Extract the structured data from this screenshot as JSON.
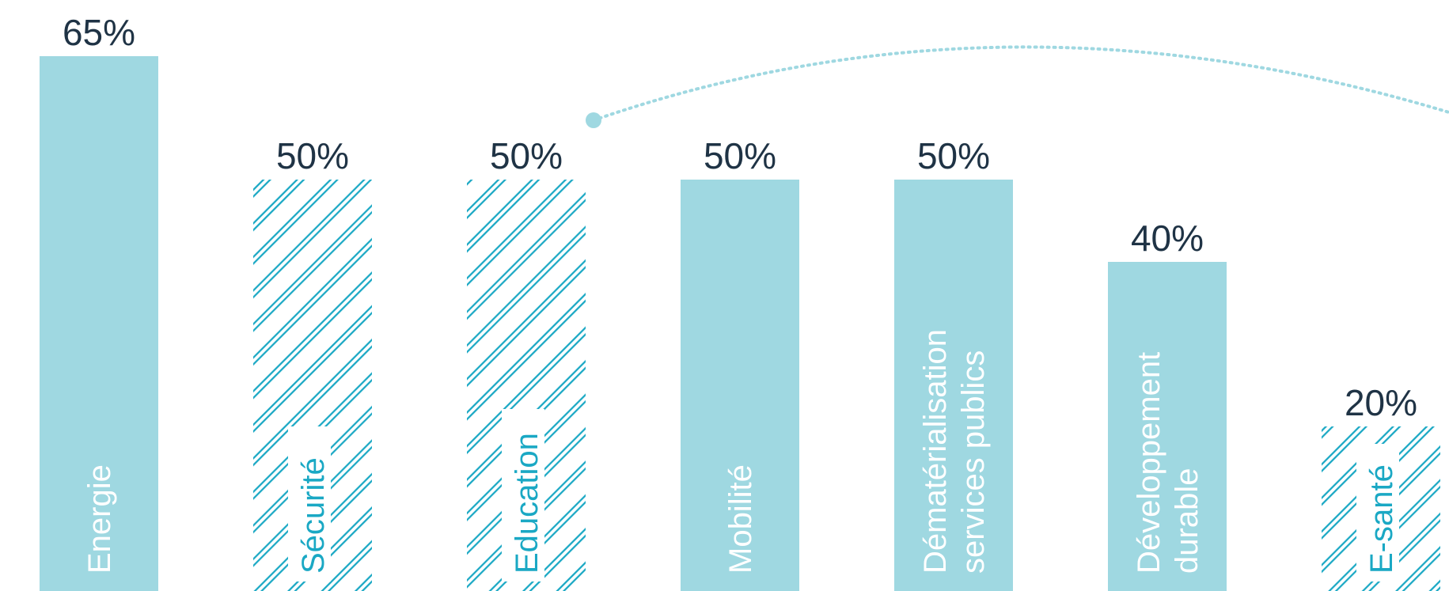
{
  "chart_data": {
    "type": "bar",
    "categories": [
      "Energie",
      "Sécurité",
      "Education",
      "Mobilité",
      "Dématérialisation services publics",
      "Développement durable",
      "E-santé"
    ],
    "category_lines": [
      [
        "Energie"
      ],
      [
        "Sécurité"
      ],
      [
        "Education"
      ],
      [
        "Mobilité"
      ],
      [
        "Dématérialisation",
        "services publics"
      ],
      [
        "Développement",
        "durable"
      ],
      [
        "E-santé"
      ]
    ],
    "values": [
      65,
      50,
      50,
      50,
      50,
      40,
      20
    ],
    "value_labels": [
      "65%",
      "50%",
      "50%",
      "50%",
      "50%",
      "40%",
      "20%"
    ],
    "bar_styles": [
      "solid",
      "hatched",
      "hatched",
      "solid",
      "solid",
      "solid",
      "hatched"
    ],
    "title": "",
    "xlabel": "",
    "ylabel": "",
    "ylim": [
      0,
      65
    ],
    "grid": false,
    "legend": "none",
    "colors": {
      "bar_fill": "#9fd8e1",
      "hatch_stroke": "#1aa8c4",
      "solid_label": "#ffffff",
      "hatched_label": "#1aa8c4",
      "value_label": "#1f3345",
      "connector": "#9fd8e1"
    }
  }
}
